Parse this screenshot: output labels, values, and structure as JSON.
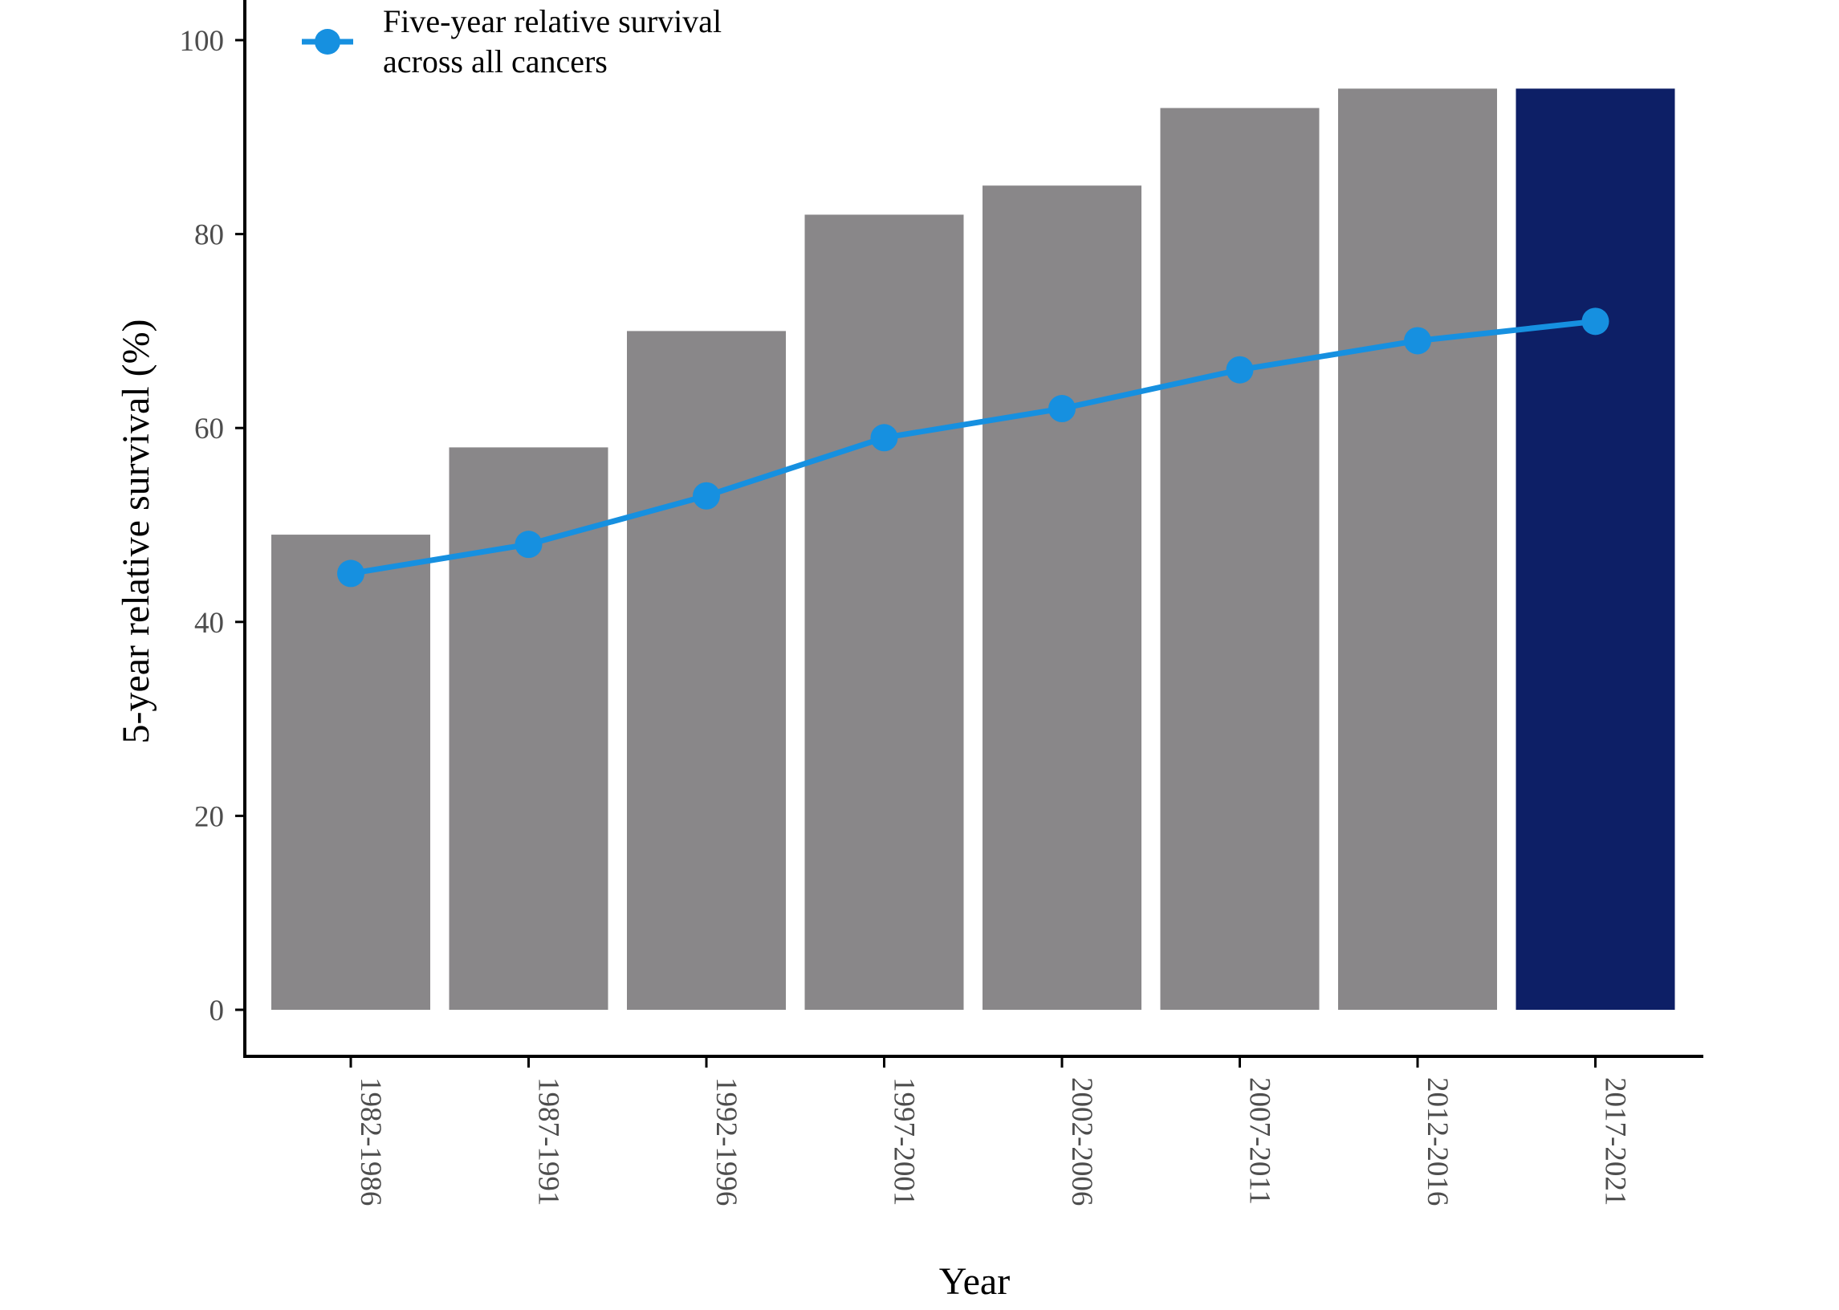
{
  "chart_data": {
    "type": "bar",
    "xlabel": "Year",
    "ylabel": "5-year relative survival (%)",
    "ylim": [
      0,
      100
    ],
    "yticks": [
      0,
      20,
      40,
      60,
      80,
      100
    ],
    "categories": [
      "1982-1986",
      "1987-1991",
      "1992-1996",
      "1997-2001",
      "2002-2006",
      "2007-2011",
      "2012-2016",
      "2017-2021"
    ],
    "bars": {
      "values": [
        49,
        58,
        70,
        82,
        85,
        93,
        95,
        95
      ],
      "colors": [
        "#898789",
        "#898789",
        "#898789",
        "#898789",
        "#898789",
        "#898789",
        "#898789",
        "#0d1f66"
      ]
    },
    "series": [
      {
        "name": "Five-year relative survival across all cancers",
        "name_lines": [
          "Five-year relative survival",
          "across all cancers"
        ],
        "type": "line",
        "color": "#1690e0",
        "values": [
          45,
          48,
          53,
          59,
          62,
          66,
          69,
          71
        ]
      }
    ],
    "legend": {
      "position": "top-left"
    },
    "grid": false
  }
}
